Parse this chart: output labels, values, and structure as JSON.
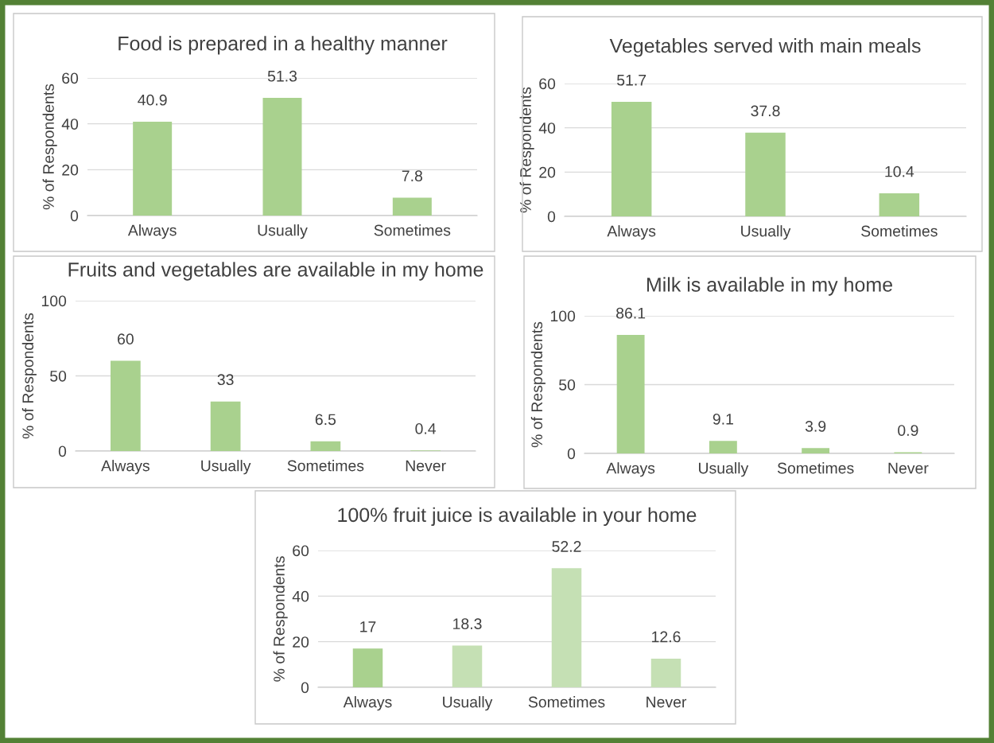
{
  "chart_data": [
    {
      "type": "bar",
      "title": "Food is prepared in a healthy manner",
      "ylabel": "% of Respondents",
      "categories": [
        "Always",
        "Usually",
        "Sometimes"
      ],
      "values": [
        40.9,
        51.3,
        7.8
      ],
      "color": "#a9d18e",
      "ylim": [
        0,
        60
      ],
      "yticks": [
        0,
        20,
        40,
        60
      ],
      "grid": "y",
      "data_labels": true
    },
    {
      "type": "bar",
      "title": "Vegetables served with main meals",
      "ylabel": "% of Respondents",
      "categories": [
        "Always",
        "Usually",
        "Sometimes"
      ],
      "values": [
        51.7,
        37.8,
        10.4
      ],
      "color": "#a9d18e",
      "ylim": [
        0,
        60
      ],
      "yticks": [
        0,
        20,
        40,
        60
      ],
      "grid": "y",
      "data_labels": true
    },
    {
      "type": "bar",
      "title": "Fruits and vegetables are available in my home",
      "ylabel": "% of Respondents",
      "categories": [
        "Always",
        "Usually",
        "Sometimes",
        "Never"
      ],
      "values": [
        60,
        33,
        6.5,
        0.4
      ],
      "color": "#a9d18e",
      "ylim": [
        0,
        100
      ],
      "yticks": [
        0,
        50,
        100
      ],
      "grid": "y",
      "data_labels": true
    },
    {
      "type": "bar",
      "title": "Milk is available in my home",
      "ylabel": "% of Respondents",
      "categories": [
        "Always",
        "Usually",
        "Sometimes",
        "Never"
      ],
      "values": [
        86.1,
        9.1,
        3.9,
        0.9
      ],
      "color": "#a9d18e",
      "ylim": [
        0,
        100
      ],
      "yticks": [
        0,
        50,
        100
      ],
      "grid": "y",
      "data_labels": true
    },
    {
      "type": "bar",
      "title": "100% fruit juice is available in your home",
      "ylabel": "% of Respondents",
      "categories": [
        "Always",
        "Usually",
        "Sometimes",
        "Never"
      ],
      "values": [
        17,
        18.3,
        52.2,
        12.6
      ],
      "colors": [
        "#a9d18e",
        "#c5e0b4",
        "#c5e0b4",
        "#c5e0b4"
      ],
      "ylim": [
        0,
        60
      ],
      "yticks": [
        0,
        20,
        40,
        60
      ],
      "grid": "y",
      "data_labels": true
    }
  ]
}
